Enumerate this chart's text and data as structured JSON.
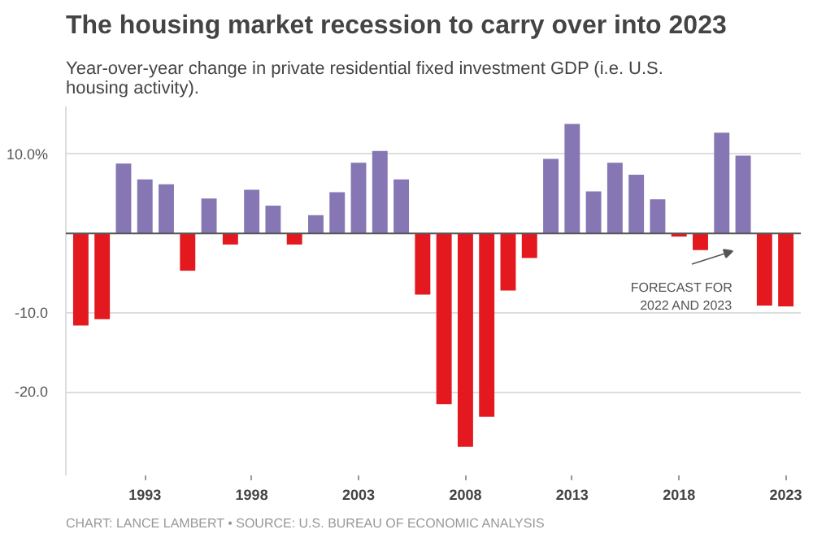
{
  "chart_data": {
    "type": "bar",
    "title": "The housing market recession to carry over into 2023",
    "subtitle": "Year-over-year change in private residential fixed investment GDP (i.e. U.S. housing activity).",
    "x": [
      1990,
      1991,
      1992,
      1993,
      1994,
      1995,
      1996,
      1997,
      1998,
      1999,
      2000,
      2001,
      2002,
      2003,
      2004,
      2005,
      2006,
      2007,
      2008,
      2009,
      2010,
      2011,
      2012,
      2013,
      2014,
      2015,
      2016,
      2017,
      2018,
      2019,
      2020,
      2021,
      2022,
      2023
    ],
    "values": [
      -11.6,
      -10.8,
      8.8,
      6.8,
      6.2,
      -4.7,
      4.4,
      -1.4,
      5.5,
      3.5,
      -1.4,
      2.3,
      5.2,
      8.9,
      10.4,
      6.8,
      -7.7,
      -21.5,
      -26.9,
      -23.1,
      -7.2,
      -3.1,
      9.4,
      13.8,
      5.3,
      8.9,
      7.4,
      4.3,
      -0.4,
      -2.1,
      12.7,
      9.8,
      -9.1,
      -9.2
    ],
    "colors": [
      "#e3191f",
      "#e3191f",
      "#8677b4",
      "#8677b4",
      "#8677b4",
      "#e3191f",
      "#8677b4",
      "#e3191f",
      "#8677b4",
      "#8677b4",
      "#e3191f",
      "#8677b4",
      "#8677b4",
      "#8677b4",
      "#8677b4",
      "#8677b4",
      "#e3191f",
      "#e3191f",
      "#e3191f",
      "#e3191f",
      "#e3191f",
      "#e3191f",
      "#8677b4",
      "#8677b4",
      "#8677b4",
      "#8677b4",
      "#8677b4",
      "#8677b4",
      "#e3191f",
      "#e3191f",
      "#8677b4",
      "#8677b4",
      "#e3191f",
      "#e3191f"
    ],
    "xlim": [
      1989.3,
      2023.7
    ],
    "xticks": [
      1993,
      1998,
      2003,
      2008,
      2013,
      2018,
      2023
    ],
    "ylim": [
      -30.5,
      16
    ],
    "yticks": [
      {
        "value": 10,
        "label": "10.0%"
      },
      {
        "value": 0,
        "label": null
      },
      {
        "value": -10,
        "label": "-10.0"
      },
      {
        "value": -20,
        "label": "-20.0"
      }
    ],
    "grid": "y",
    "annotations": [
      "FORECAST FOR 2022 AND 2023",
      "CHART: LANCE LAMBERT • SOURCE: U.S. BUREAU OF ECONOMIC ANALYSIS"
    ]
  }
}
